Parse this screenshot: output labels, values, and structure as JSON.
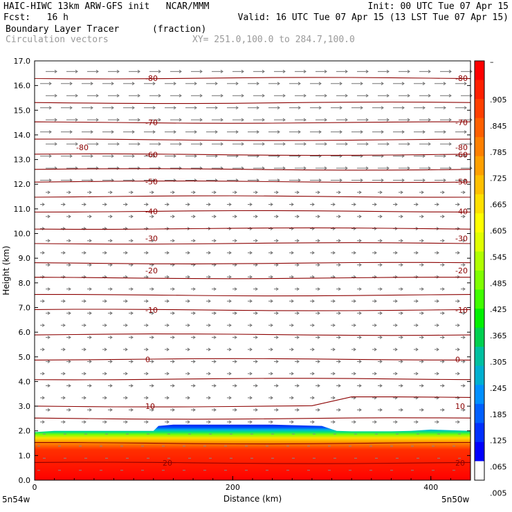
{
  "header": {
    "line1_left": "HAIC-HIWC 13km ARW-GFS init   NCAR/MMM",
    "line1_right": "Init: 00 UTC Tue 07 Apr 15",
    "line2_left": "Fcst:   16 h",
    "line2_right": "Valid: 16 UTC Tue 07 Apr 15 (13 LST Tue 07 Apr 15)",
    "line3_left": "Boundary Layer Tracer",
    "line3_units": "(fraction)",
    "line4_left": "Circulation vectors",
    "line4_right": "XY= 251.0,100.0 to 284.7,100.0"
  },
  "chart_data": {
    "type": "heatmap",
    "xlabel": "Distance (km)",
    "ylabel": "Height (km)",
    "xlim": [
      0,
      440
    ],
    "ylim": [
      0,
      17
    ],
    "x_ticks": [
      "0",
      "200",
      "400"
    ],
    "x_tick_values": [
      0,
      200,
      400
    ],
    "x_end_labels": [
      "5n54w",
      "5n50w"
    ],
    "y_ticks": [
      "0.0",
      "1.0",
      "2.0",
      "3.0",
      "4.0",
      "5.0",
      "6.0",
      "7.0",
      "8.0",
      "9.0",
      "10.0",
      "11.0",
      "12.0",
      "13.0",
      "14.0",
      "15.0",
      "16.0",
      "17.0"
    ],
    "colorbar": {
      "labels": [
        ".905",
        ".845",
        ".785",
        ".725",
        ".665",
        ".605",
        ".545",
        ".485",
        ".425",
        ".365",
        ".305",
        ".245",
        ".185",
        ".125",
        ".065",
        ".005"
      ],
      "top_label": "–",
      "colors": [
        "#ff0000",
        "#ff2000",
        "#ff4000",
        "#ff6000",
        "#ff8000",
        "#ffa000",
        "#ffc000",
        "#ffe000",
        "#ffff00",
        "#e0ff00",
        "#b0ff00",
        "#80ff00",
        "#40ff00",
        "#00f000",
        "#00d050",
        "#00c0a0",
        "#00b0d0",
        "#0090ff",
        "#0060ff",
        "#0030ff",
        "#0000ff",
        "#ffffff"
      ]
    },
    "tracer_top_km": [
      1.95,
      2.0,
      2.0,
      2.0,
      2.0,
      2.0,
      2.0,
      2.2,
      2.25,
      2.25,
      2.25,
      2.25,
      2.25,
      2.25,
      2.2,
      2.0,
      1.98,
      1.98,
      1.98,
      2.0,
      2.05,
      2.0
    ],
    "tracer_x_km": [
      0,
      20,
      40,
      60,
      80,
      100,
      120,
      125,
      140,
      160,
      180,
      200,
      220,
      240,
      290,
      305,
      320,
      340,
      360,
      380,
      400,
      440
    ],
    "temperature_isotherms": [
      {
        "label": "-80",
        "height_km": 16.3
      },
      {
        "label": "-80",
        "height_km": 13.5
      },
      {
        "label": "-70",
        "height_km": 14.5
      },
      {
        "label": "-60",
        "height_km": 13.2
      },
      {
        "label": "-50",
        "height_km": 12.1
      },
      {
        "label": "-40",
        "height_km": 10.9
      },
      {
        "label": "-30",
        "height_km": 9.8
      },
      {
        "label": "-20",
        "height_km": 8.5
      },
      {
        "label": "-10",
        "height_km": 6.9
      },
      {
        "label": "0",
        "height_km": 4.9
      },
      {
        "label": "10",
        "height_km": 3.0
      },
      {
        "label": "20",
        "height_km": 0.7
      }
    ],
    "series": []
  }
}
